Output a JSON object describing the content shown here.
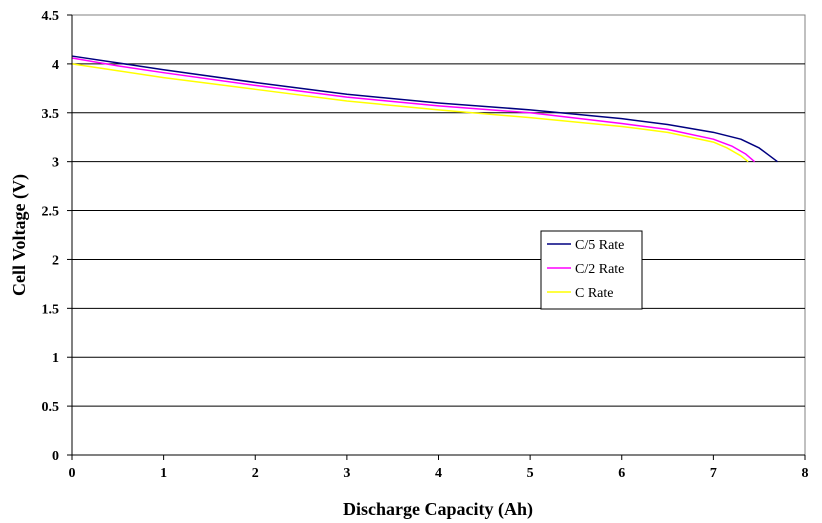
{
  "chart_data": {
    "type": "line",
    "title": "",
    "xlabel": "Discharge Capacity (Ah)",
    "ylabel": "Cell Voltage (V)",
    "xlim": [
      0,
      8
    ],
    "ylim": [
      0,
      4.5
    ],
    "xticks": [
      0,
      1,
      2,
      3,
      4,
      5,
      6,
      7,
      8
    ],
    "xtick_labels": [
      "0",
      "1",
      "2",
      "3",
      "4",
      "5",
      "6",
      "7",
      "8"
    ],
    "yticks": [
      0,
      0.5,
      1,
      1.5,
      2,
      2.5,
      3,
      3.5,
      4,
      4.5
    ],
    "ytick_labels": [
      "0",
      "0.5",
      "1",
      "1.5",
      "2",
      "2.5",
      "3",
      "3.5",
      "4",
      "4.5"
    ],
    "grid": "horizontal",
    "legend_position": "center-right",
    "series": [
      {
        "name": "C/5 Rate",
        "color": "#000080",
        "x": [
          0,
          0.5,
          1,
          2,
          3,
          4,
          5,
          6,
          6.5,
          7,
          7.3,
          7.5,
          7.6,
          7.7
        ],
        "y": [
          4.08,
          4.01,
          3.94,
          3.81,
          3.69,
          3.6,
          3.53,
          3.44,
          3.38,
          3.3,
          3.23,
          3.14,
          3.07,
          3.0
        ]
      },
      {
        "name": "C/2 Rate",
        "color": "#ff00ff",
        "x": [
          0,
          0.5,
          1,
          2,
          3,
          4,
          5,
          6,
          6.5,
          7,
          7.2,
          7.35,
          7.45
        ],
        "y": [
          4.06,
          3.98,
          3.91,
          3.78,
          3.66,
          3.57,
          3.5,
          3.39,
          3.33,
          3.23,
          3.16,
          3.08,
          3.0
        ]
      },
      {
        "name": "C Rate",
        "color": "#ffff00",
        "x": [
          0,
          0.5,
          1,
          2,
          3,
          4,
          5,
          6,
          6.5,
          7,
          7.15,
          7.3,
          7.38
        ],
        "y": [
          4.0,
          3.93,
          3.86,
          3.74,
          3.62,
          3.53,
          3.45,
          3.36,
          3.3,
          3.2,
          3.14,
          3.06,
          3.0
        ]
      }
    ]
  }
}
